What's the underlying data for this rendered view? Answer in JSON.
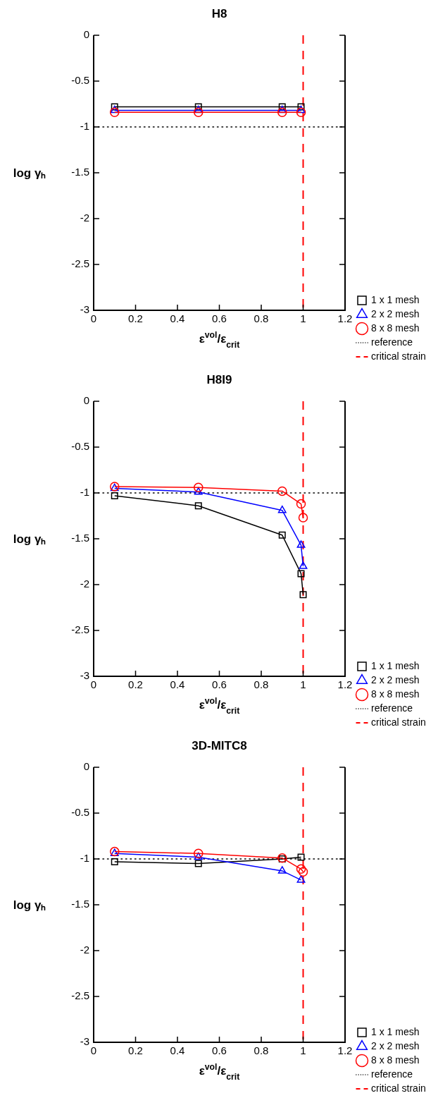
{
  "chart_data": [
    {
      "type": "line",
      "title": "H8",
      "xlabel": "ε$^{vol}$/ε$_{crit}$",
      "ylabel": "log γₕ",
      "xlim": [
        0,
        1.2
      ],
      "xticks": [
        0,
        0.2,
        0.4,
        0.6,
        0.8,
        1,
        1.2
      ],
      "ylim": [
        -3,
        0
      ],
      "yticks": [
        -3,
        -2.5,
        -2,
        -1.5,
        -1,
        -0.5,
        0
      ],
      "legend": "bottom right",
      "series": [
        {
          "name": "1 x 1 mesh",
          "color": "#000000",
          "marker": "square",
          "x": [
            0.1,
            0.5,
            0.9,
            0.99
          ],
          "values": [
            -0.78,
            -0.78,
            -0.78,
            -0.78
          ]
        },
        {
          "name": "2 x 2 mesh",
          "color": "#0000ff",
          "marker": "triangle",
          "x": [
            0.1,
            0.5,
            0.9,
            0.99
          ],
          "values": [
            -0.82,
            -0.82,
            -0.82,
            -0.82
          ]
        },
        {
          "name": "8 x 8 mesh",
          "color": "#ff0000",
          "marker": "circle",
          "x": [
            0.1,
            0.5,
            0.9,
            0.99
          ],
          "values": [
            -0.84,
            -0.84,
            -0.84,
            -0.84
          ]
        }
      ],
      "ref_lines": [
        {
          "axis": "y",
          "value": -1,
          "label": "reference",
          "color": "#000000",
          "line_style": "dotted"
        },
        {
          "axis": "x",
          "value": 1,
          "label": "critical strain",
          "color": "#ff0000",
          "line_style": "dashed"
        }
      ]
    },
    {
      "type": "line",
      "title": "H8I9",
      "xlabel": "ε$^{vol}$/ε$_{crit}$",
      "ylabel": "log γₕ",
      "xlim": [
        0,
        1.2
      ],
      "xticks": [
        0,
        0.2,
        0.4,
        0.6,
        0.8,
        1,
        1.2
      ],
      "ylim": [
        -3,
        0
      ],
      "yticks": [
        -3,
        -2.5,
        -2,
        -1.5,
        -1,
        -0.5,
        0
      ],
      "legend": "bottom right",
      "series": [
        {
          "name": "1 x 1 mesh",
          "color": "#000000",
          "marker": "square",
          "x": [
            0.1,
            0.5,
            0.9,
            0.99,
            1
          ],
          "values": [
            -1.03,
            -1.14,
            -1.46,
            -1.88,
            -2.11
          ]
        },
        {
          "name": "2 x 2 mesh",
          "color": "#0000ff",
          "marker": "triangle",
          "x": [
            0.1,
            0.5,
            0.9,
            0.99,
            1
          ],
          "values": [
            -0.95,
            -0.99,
            -1.19,
            -1.57,
            -1.8
          ]
        },
        {
          "name": "8 x 8 mesh",
          "color": "#ff0000",
          "marker": "circle",
          "x": [
            0.1,
            0.5,
            0.9,
            0.99,
            1
          ],
          "values": [
            -0.93,
            -0.94,
            -0.98,
            -1.12,
            -1.27
          ]
        }
      ],
      "ref_lines": [
        {
          "axis": "y",
          "value": -1,
          "label": "reference",
          "color": "#000000",
          "line_style": "dotted"
        },
        {
          "axis": "x",
          "value": 1,
          "label": "critical strain",
          "color": "#ff0000",
          "line_style": "dashed"
        }
      ]
    },
    {
      "type": "line",
      "title": "3D-MITC8",
      "xlabel": "ε$^{vol}$/ε$_{crit}$",
      "ylabel": "log γₕ",
      "xlim": [
        0,
        1.2
      ],
      "xticks": [
        0,
        0.2,
        0.4,
        0.6,
        0.8,
        1,
        1.2
      ],
      "ylim": [
        -3,
        0
      ],
      "yticks": [
        -3,
        -2.5,
        -2,
        -1.5,
        -1,
        -0.5,
        0
      ],
      "legend": "bottom right",
      "series": [
        {
          "name": "1 x 1 mesh",
          "color": "#000000",
          "marker": "square",
          "x": [
            0.1,
            0.5,
            0.9,
            0.99
          ],
          "values": [
            -1.03,
            -1.05,
            -1.0,
            -0.98
          ]
        },
        {
          "name": "2 x 2 mesh",
          "color": "#0000ff",
          "marker": "triangle",
          "x": [
            0.1,
            0.5,
            0.9,
            0.99
          ],
          "values": [
            -0.94,
            -0.98,
            -1.13,
            -1.23
          ]
        },
        {
          "name": "8 x 8 mesh",
          "color": "#ff0000",
          "marker": "circle",
          "x": [
            0.1,
            0.5,
            0.9,
            0.99,
            1
          ],
          "values": [
            -0.92,
            -0.94,
            -0.99,
            -1.11,
            -1.14
          ]
        }
      ],
      "ref_lines": [
        {
          "axis": "y",
          "value": -1,
          "label": "reference",
          "color": "#000000",
          "line_style": "dotted"
        },
        {
          "axis": "x",
          "value": 1,
          "label": "critical strain",
          "color": "#ff0000",
          "line_style": "dashed"
        }
      ]
    }
  ]
}
